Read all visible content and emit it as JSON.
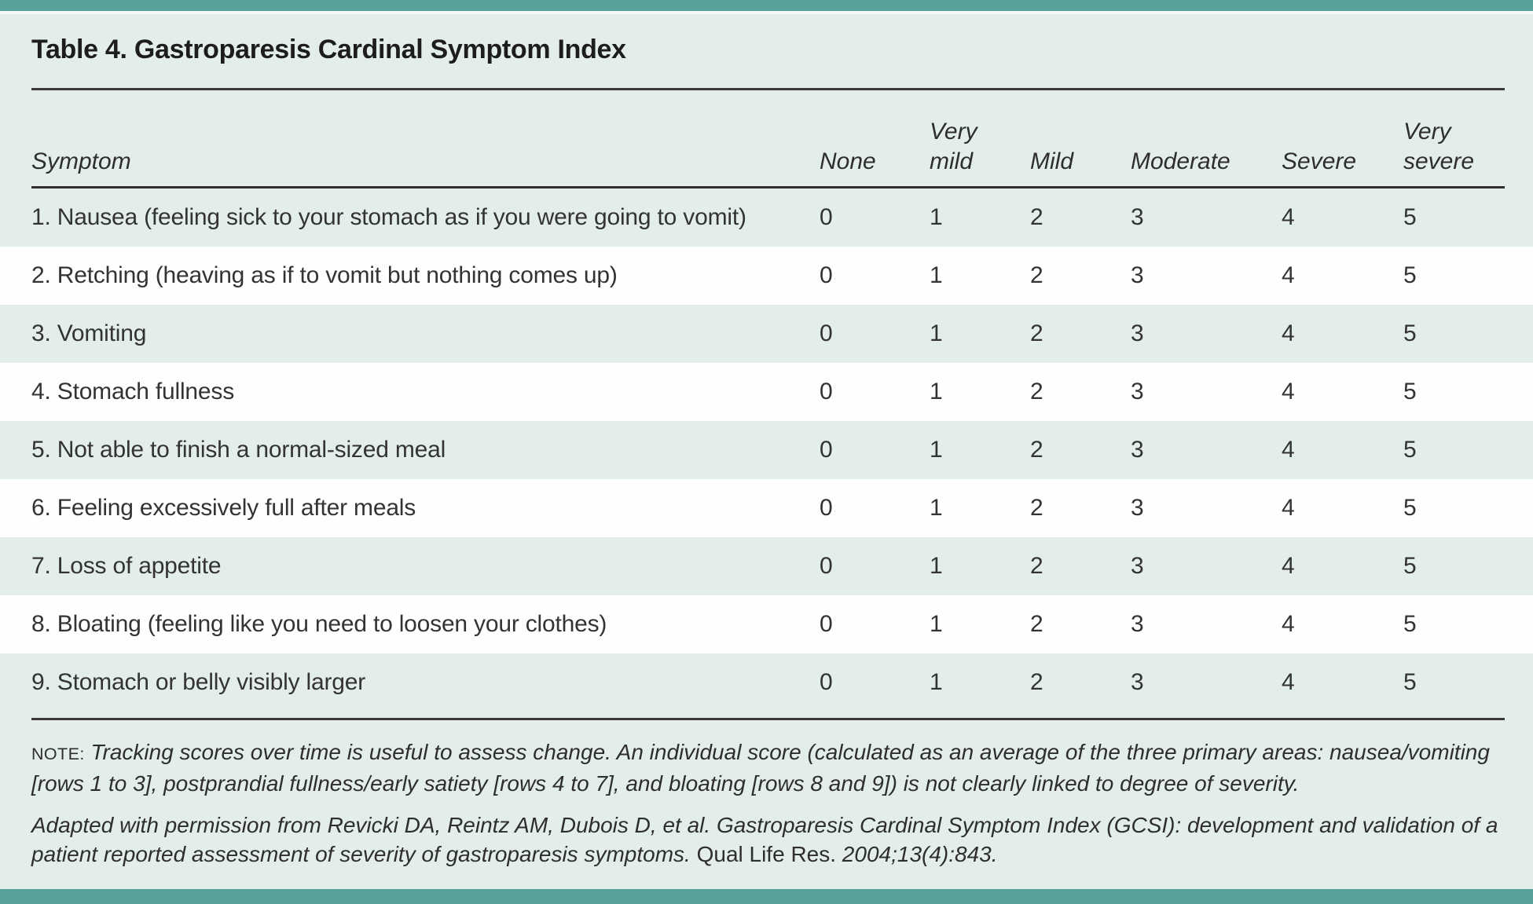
{
  "title": "Table 4. Gastroparesis Cardinal Symptom Index",
  "table": {
    "symptom_header": "Symptom",
    "columns": [
      {
        "line1": "",
        "line2": "None"
      },
      {
        "line1": "Very",
        "line2": "mild"
      },
      {
        "line1": "",
        "line2": "Mild"
      },
      {
        "line1": "",
        "line2": "Moderate"
      },
      {
        "line1": "",
        "line2": "Severe"
      },
      {
        "line1": "Very",
        "line2": "severe"
      }
    ],
    "rows": [
      {
        "label": "1. Nausea (feeling sick to your stomach as if you were going to vomit)",
        "values": [
          "0",
          "1",
          "2",
          "3",
          "4",
          "5"
        ]
      },
      {
        "label": "2. Retching (heaving as if to vomit but nothing comes up)",
        "values": [
          "0",
          "1",
          "2",
          "3",
          "4",
          "5"
        ]
      },
      {
        "label": "3. Vomiting",
        "values": [
          "0",
          "1",
          "2",
          "3",
          "4",
          "5"
        ]
      },
      {
        "label": "4. Stomach fullness",
        "values": [
          "0",
          "1",
          "2",
          "3",
          "4",
          "5"
        ]
      },
      {
        "label": "5. Not able to finish a normal-sized meal",
        "values": [
          "0",
          "1",
          "2",
          "3",
          "4",
          "5"
        ]
      },
      {
        "label": "6. Feeling excessively full after meals",
        "values": [
          "0",
          "1",
          "2",
          "3",
          "4",
          "5"
        ]
      },
      {
        "label": "7. Loss of appetite",
        "values": [
          "0",
          "1",
          "2",
          "3",
          "4",
          "5"
        ]
      },
      {
        "label": "8. Bloating (feeling like you need to loosen your clothes)",
        "values": [
          "0",
          "1",
          "2",
          "3",
          "4",
          "5"
        ]
      },
      {
        "label": "9. Stomach or belly visibly larger",
        "values": [
          "0",
          "1",
          "2",
          "3",
          "4",
          "5"
        ]
      }
    ]
  },
  "note": {
    "label": "NOTE:",
    "text": "Tracking scores over time is useful to assess change. An individual score (calculated as an average of the three primary areas: nausea/vomiting [rows 1 to 3], postprandial fullness/early satiety [rows 4 to 7], and bloating [rows 8 and 9]) is not clearly linked to degree of severity."
  },
  "citation": {
    "part1": "Adapted with permission from Revicki DA, Reintz AM, Dubois D, et al. Gastroparesis Cardinal Symptom Index (GCSI): development and validation of a patient reported assessment of severity of gastroparesis symptoms.",
    "journal": "Qual Life Res.",
    "part2": "2004;13(4):843."
  },
  "colors": {
    "accent_teal": "#56a19a",
    "page_background": "#e3edeb",
    "shaded_row": "#e3edeb",
    "plain_row": "#fdfffe",
    "rule": "#3a3a3a",
    "text": "#2e2e2e"
  }
}
